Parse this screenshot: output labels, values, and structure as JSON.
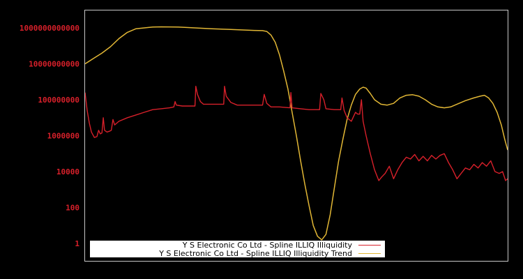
{
  "chart_data": {
    "type": "line",
    "title": "",
    "xlabel": "",
    "ylabel": "",
    "yscale": "log",
    "ylim": [
      0.1,
      10000000000000.0
    ],
    "y_ticks": [
      {
        "value": 1000000000000.0,
        "label": "1000000000000"
      },
      {
        "value": 10000000000.0,
        "label": "10000000000"
      },
      {
        "value": 100000000.0,
        "label": "100000000"
      },
      {
        "value": 1000000.0,
        "label": "1000000"
      },
      {
        "value": 10000.0,
        "label": "10000"
      },
      {
        "value": 100.0,
        "label": "100"
      },
      {
        "value": 1,
        "label": "1"
      }
    ],
    "x_ticks": [],
    "grid": false,
    "legend_position": "bottom-center inside plot",
    "x_normalized_note": "x is a normalized 0-100 time index (no x-axis labels shown)",
    "series": [
      {
        "name": "Y S Electronic Co Ltd - Spline ILLIQ Illiquidity",
        "color": "#d7202a",
        "log10_points": [
          [
            0.0,
            8.4
          ],
          [
            0.5,
            7.4
          ],
          [
            1.0,
            6.7
          ],
          [
            1.5,
            6.2
          ],
          [
            2.2,
            5.9
          ],
          [
            2.8,
            5.95
          ],
          [
            3.2,
            6.3
          ],
          [
            3.6,
            6.1
          ],
          [
            4.0,
            6.15
          ],
          [
            4.3,
            7.0
          ],
          [
            4.6,
            6.3
          ],
          [
            5.2,
            6.2
          ],
          [
            5.8,
            6.25
          ],
          [
            6.2,
            6.3
          ],
          [
            6.6,
            6.9
          ],
          [
            7.0,
            6.6
          ],
          [
            8.0,
            6.8
          ],
          [
            10,
            7.0
          ],
          [
            12,
            7.15
          ],
          [
            14,
            7.3
          ],
          [
            16,
            7.45
          ],
          [
            18,
            7.5
          ],
          [
            20,
            7.55
          ],
          [
            21.0,
            7.6
          ],
          [
            21.3,
            7.9
          ],
          [
            21.6,
            7.7
          ],
          [
            23,
            7.65
          ],
          [
            25,
            7.65
          ],
          [
            26.0,
            7.65
          ],
          [
            26.2,
            8.75
          ],
          [
            26.6,
            8.3
          ],
          [
            27.3,
            7.9
          ],
          [
            28,
            7.75
          ],
          [
            31,
            7.75
          ],
          [
            32.8,
            7.75
          ],
          [
            33.0,
            8.75
          ],
          [
            33.4,
            8.2
          ],
          [
            34.5,
            7.85
          ],
          [
            36,
            7.7
          ],
          [
            39,
            7.7
          ],
          [
            42,
            7.7
          ],
          [
            42.4,
            8.3
          ],
          [
            43.0,
            7.8
          ],
          [
            44,
            7.6
          ],
          [
            46,
            7.6
          ],
          [
            48.5,
            7.55
          ],
          [
            48.7,
            8.4
          ],
          [
            49.0,
            7.55
          ],
          [
            51,
            7.5
          ],
          [
            53,
            7.45
          ],
          [
            55.5,
            7.45
          ],
          [
            55.8,
            8.35
          ],
          [
            56.5,
            8.0
          ],
          [
            57,
            7.5
          ],
          [
            59,
            7.45
          ],
          [
            60.5,
            7.45
          ],
          [
            60.8,
            8.1
          ],
          [
            61.3,
            7.4
          ],
          [
            62,
            7.0
          ],
          [
            63,
            6.8
          ],
          [
            64.5,
            7.2
          ],
          [
            64.0,
            7.3
          ],
          [
            65.0,
            7.2
          ],
          [
            65.4,
            8.0
          ],
          [
            65.8,
            6.8
          ],
          [
            66.5,
            6.0
          ],
          [
            67.5,
            5.0
          ],
          [
            68.5,
            4.1
          ],
          [
            69.5,
            3.5
          ],
          [
            70.2,
            3.7
          ],
          [
            71,
            3.9
          ],
          [
            72,
            4.3
          ],
          [
            73,
            3.6
          ],
          [
            74,
            4.1
          ],
          [
            75,
            4.5
          ],
          [
            76,
            4.8
          ],
          [
            77,
            4.7
          ],
          [
            78,
            4.95
          ],
          [
            79,
            4.6
          ],
          [
            80,
            4.85
          ],
          [
            81,
            4.6
          ],
          [
            82,
            4.9
          ],
          [
            83,
            4.7
          ],
          [
            84,
            4.9
          ],
          [
            85,
            5.0
          ],
          [
            86,
            4.5
          ],
          [
            87,
            4.1
          ],
          [
            88,
            3.6
          ],
          [
            89,
            3.9
          ],
          [
            90,
            4.2
          ],
          [
            91,
            4.1
          ],
          [
            92,
            4.4
          ],
          [
            93,
            4.2
          ],
          [
            94,
            4.5
          ],
          [
            95,
            4.3
          ],
          [
            96,
            4.6
          ],
          [
            97,
            4.0
          ],
          [
            98,
            3.9
          ],
          [
            98.8,
            4.0
          ],
          [
            99.5,
            3.5
          ],
          [
            100,
            3.6
          ]
        ]
      },
      {
        "name": "Y S Electronic Co Ltd - Spline ILLIQ Illiquidity Trend",
        "color": "#e2b735",
        "log10_points": [
          [
            0,
            10.0
          ],
          [
            2,
            10.3
          ],
          [
            4,
            10.6
          ],
          [
            6,
            10.95
          ],
          [
            8,
            11.4
          ],
          [
            10,
            11.75
          ],
          [
            12,
            11.95
          ],
          [
            14,
            12.0
          ],
          [
            16,
            12.05
          ],
          [
            18,
            12.06
          ],
          [
            22,
            12.05
          ],
          [
            26,
            12.0
          ],
          [
            30,
            11.95
          ],
          [
            34,
            11.92
          ],
          [
            38,
            11.88
          ],
          [
            40,
            11.86
          ],
          [
            42,
            11.85
          ],
          [
            43,
            11.8
          ],
          [
            44,
            11.6
          ],
          [
            45,
            11.2
          ],
          [
            46,
            10.5
          ],
          [
            47,
            9.6
          ],
          [
            48,
            8.6
          ],
          [
            49,
            7.3
          ],
          [
            50,
            6.0
          ],
          [
            51,
            4.6
          ],
          [
            52,
            3.3
          ],
          [
            53,
            2.1
          ],
          [
            54,
            1.0
          ],
          [
            55,
            0.4
          ],
          [
            56,
            0.2
          ],
          [
            57,
            0.5
          ],
          [
            58,
            1.6
          ],
          [
            59,
            3.1
          ],
          [
            60,
            4.6
          ],
          [
            61,
            5.8
          ],
          [
            62,
            6.9
          ],
          [
            63,
            7.7
          ],
          [
            64,
            8.3
          ],
          [
            65,
            8.6
          ],
          [
            65.8,
            8.7
          ],
          [
            66.5,
            8.65
          ],
          [
            67.5,
            8.35
          ],
          [
            68.5,
            8.0
          ],
          [
            70,
            7.75
          ],
          [
            71.5,
            7.7
          ],
          [
            73,
            7.8
          ],
          [
            74.5,
            8.1
          ],
          [
            76,
            8.25
          ],
          [
            77.5,
            8.28
          ],
          [
            79,
            8.2
          ],
          [
            80.5,
            8.0
          ],
          [
            82,
            7.75
          ],
          [
            83.5,
            7.6
          ],
          [
            85,
            7.55
          ],
          [
            86.5,
            7.6
          ],
          [
            88,
            7.75
          ],
          [
            90,
            7.95
          ],
          [
            92,
            8.1
          ],
          [
            93.5,
            8.2
          ],
          [
            94.5,
            8.25
          ],
          [
            95.5,
            8.1
          ],
          [
            96.5,
            7.8
          ],
          [
            97.5,
            7.3
          ],
          [
            98.5,
            6.6
          ],
          [
            99.3,
            5.8
          ],
          [
            100,
            5.2
          ]
        ]
      }
    ]
  },
  "legend": {
    "items": [
      {
        "label": "Y S Electronic Co Ltd - Spline ILLIQ Illiquidity",
        "color": "#d7202a"
      },
      {
        "label": "Y S Electronic Co Ltd - Spline ILLIQ Illiquidity Trend",
        "color": "#e2b735"
      }
    ]
  },
  "colors": {
    "background": "#000000",
    "frame": "#c8c8c8",
    "tick_label": "#d7202a",
    "legend_bg": "#ffffff"
  }
}
